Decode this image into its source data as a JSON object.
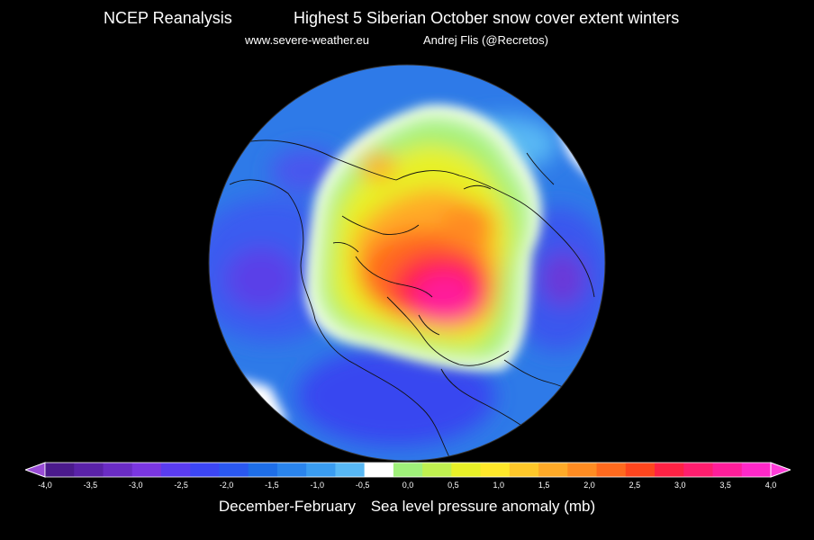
{
  "header": {
    "source": "NCEP Reanalysis",
    "title": "Highest 5 Siberian October snow cover extent winters",
    "website": "www.severe-weather.eu",
    "author": "Andrej Flis (@Recretos)"
  },
  "caption": {
    "period": "December-February",
    "variable": "Sea level pressure anomaly (mb)"
  },
  "colorbar": {
    "ticks": [
      "-4,0",
      "-3,5",
      "-3,0",
      "-2,5",
      "-2,0",
      "-1,5",
      "-1,0",
      "-0,5",
      "0,0",
      "0,5",
      "1,0",
      "1,5",
      "2,0",
      "2,5",
      "3,0",
      "3,5",
      "4,0"
    ],
    "colors": [
      "#4b1a8c",
      "#5a22a8",
      "#6a2cc4",
      "#7a36e0",
      "#5a3cf0",
      "#3c46f4",
      "#2a58f0",
      "#1e6ee8",
      "#2a84ec",
      "#3a9cf0",
      "#58b8f4",
      "#ffffff",
      "#a0f07a",
      "#c0f050",
      "#e8f028",
      "#ffe82a",
      "#ffc82a",
      "#ffaa28",
      "#ff8c22",
      "#ff6a1e",
      "#ff461e",
      "#ff2244",
      "#ff1e6e",
      "#ff1e9a",
      "#ff28c8"
    ],
    "min_color": "#9a4cd6",
    "max_color": "#ff3cd8"
  },
  "map": {
    "projection": "north-polar-stereographic",
    "land_outline_color": "#111111",
    "zero_contour_color": "#ffffff"
  }
}
